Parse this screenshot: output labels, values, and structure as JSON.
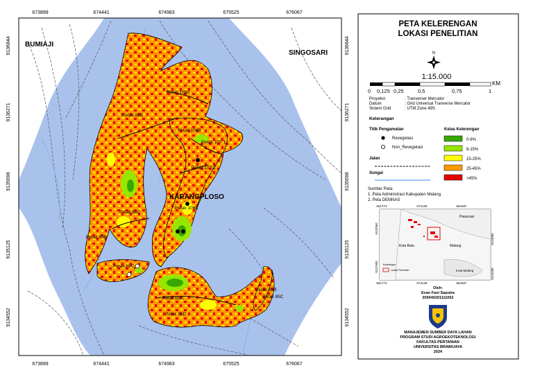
{
  "map": {
    "grid_x_top": [
      "673899",
      "674441",
      "674983",
      "675525",
      "676067"
    ],
    "grid_x_bottom": [
      "673899",
      "674441",
      "674983",
      "675525",
      "676067"
    ],
    "grid_y_left": [
      "9136844",
      "9136271",
      "9135698",
      "9135125",
      "9134552"
    ],
    "grid_y_right": [
      "9136844",
      "9136271",
      "9135698",
      "9135125",
      "9134552"
    ],
    "region_labels": {
      "bumiaji": "BUMIAJI",
      "singosari": "SINGOSARI",
      "karangploso": "KARANGPLOSO"
    },
    "petak_labels": [
      "Petak 88B",
      "Petak 108A",
      "Petak 108B",
      "Petak 107-1",
      "Petak 107-2",
      "Petak 108C",
      "Petak 88C",
      "Petak 89B",
      "Petak 89C",
      "Petak 85A",
      "Petak 85D",
      "Petak 85B",
      "Petak 85C"
    ],
    "colors": {
      "background": "#a9c2ec",
      "class_0_8": "#38a800",
      "class_8_15": "#98e600",
      "class_15_25": "#ffff00",
      "class_25_45": "#ff9a00",
      "class_45": "#e60000"
    }
  },
  "legend": {
    "title_line1": "PETA KELERENGAN",
    "title_line2": "LOKASI PENELITIAN",
    "north_symbol": "N",
    "scale_text": "1:15.000",
    "scale_unit": "KM",
    "scale_ticks": [
      "0",
      "0,125",
      "0,25",
      "0,5",
      "0,75",
      "1"
    ],
    "proj_rows": [
      {
        "key": "Proyeksi",
        "value": ": Tranverser Mercator"
      },
      {
        "key": "Datum",
        "value": ": Grid Universal Tranverse Mercator"
      },
      {
        "key": "Sistem Grid",
        "value": ": UTM Zone 49S"
      }
    ],
    "keterangan": "Keterangan",
    "titik_pengamatan": "Titik Pengamatan",
    "revegetasi": "Revegetasi",
    "non_revegetasi": "Non_Revegetasi",
    "jalan": "Jalan",
    "sungai": "Sungai",
    "kelas_title": "Kelas Kelerengan",
    "kelas_items": [
      {
        "label": "0-8%",
        "color": "#38a800"
      },
      {
        "label": "8-15%",
        "color": "#98e600"
      },
      {
        "label": "15-25%",
        "color": "#ffff00"
      },
      {
        "label": "25-45%",
        "color": "#ff9a00"
      },
      {
        "label": ">45%",
        "color": "#e60000"
      }
    ],
    "sumber_title": "Sumber Peta:",
    "sumber_1": "1. Peta Administrasi Kabupaten Malang",
    "sumber_2": "2. Peta DEMNAS",
    "inset": {
      "x_top": [
        "661774",
        "673138",
        "684487"
      ],
      "x_bottom": [
        "661774",
        "673138",
        "684487"
      ],
      "y_left": [
        "9137062",
        "9127902"
      ],
      "y_right": [
        "9134065",
        "9124285"
      ],
      "label_pasuruan": "Pasuruan",
      "label_kota_batu": "Kota Batu",
      "label_malang": "Malang",
      "label_kota_malang": "Kota Malang",
      "label_keterangan": "Keterangan",
      "label_lokasi": "Lokasi Penelitian"
    },
    "oleh": "Oleh:",
    "author": "Evan Fani Saputra",
    "nim": "205040201111052",
    "footer_1": "MANAJEMEN SUMBER DAYA LAHAN",
    "footer_2": "PROGRAM STUDI AGROEKOTEKNOLOGI",
    "footer_3": "FAKULTAS PERTANIAN",
    "footer_4": "UNIVERSITAS BRAWIJAYA",
    "footer_5": "2024"
  }
}
